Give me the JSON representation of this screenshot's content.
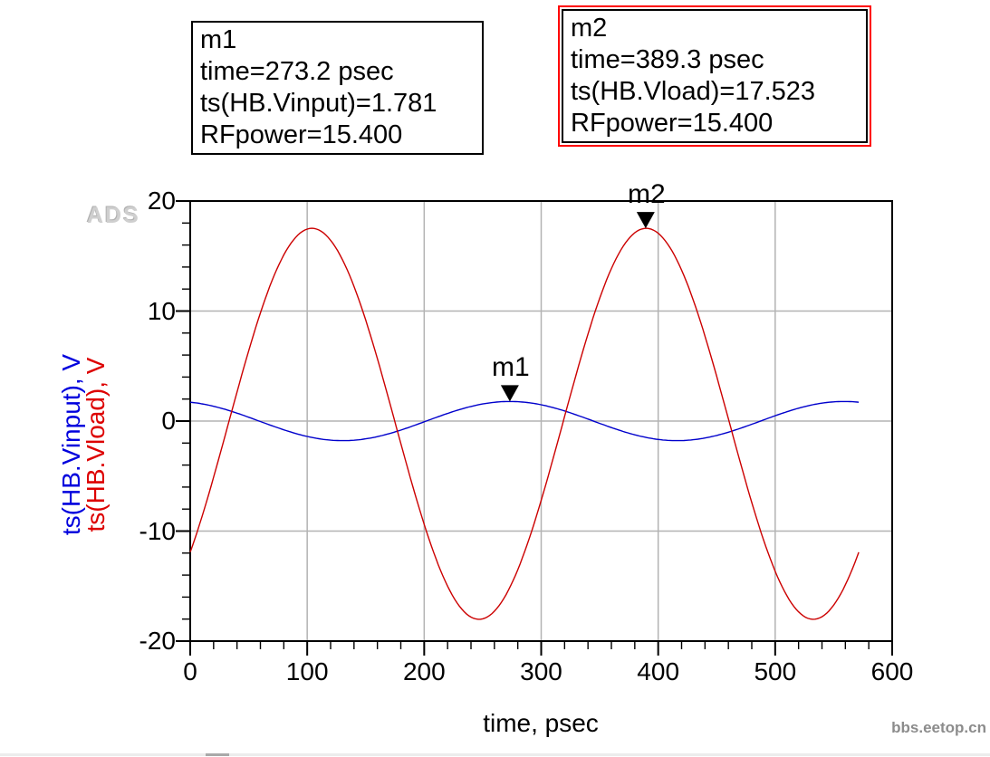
{
  "watermarks": {
    "ads": "ADS",
    "site": "bbs.eetop.cn"
  },
  "markers": {
    "m1": {
      "selected": false,
      "lines": [
        "m1",
        "time=273.2 psec",
        "ts(HB.Vinput)=1.781",
        "RFpower=15.400"
      ]
    },
    "m2": {
      "selected": true,
      "selection_color": "#ff0000",
      "lines": [
        "m2",
        "time=389.3 psec",
        "ts(HB.Vload)=17.523",
        "RFpower=15.400"
      ]
    }
  },
  "chart_data": {
    "type": "line",
    "title": "",
    "xlabel": "time, psec",
    "ylabels": [
      {
        "text": "ts(HB.Vinput), V",
        "color": "#0000dd"
      },
      {
        "text": "ts(HB.Vload), V",
        "color": "#dd0000"
      }
    ],
    "xlim": [
      0,
      600
    ],
    "ylim": [
      -20,
      20
    ],
    "x_major_ticks": [
      0,
      100,
      200,
      300,
      400,
      500,
      600
    ],
    "y_major_ticks": [
      -20,
      -10,
      0,
      10,
      20
    ],
    "x_minor_step": 20,
    "y_minor_step": 2,
    "grid": true,
    "grid_color": "#b3b3b3",
    "frame_color": "#000000",
    "series": [
      {
        "name": "ts(HB.Vinput)",
        "color": "#0000cc",
        "waveform": "sine",
        "amplitude": 1.781,
        "period_psec": 285.714,
        "peak_time_psec": 273.2,
        "dc_offset": 0,
        "t_start": 0,
        "t_end": 571.4,
        "samples_t": [
          0,
          40,
          80,
          120,
          160,
          200,
          240,
          280,
          320,
          360,
          400,
          440,
          480,
          520,
          560
        ],
        "samples_v": [
          1.71,
          0.72,
          -0.8,
          -1.74,
          -1.42,
          -0.07,
          1.33,
          1.76,
          0.92,
          -0.59,
          -1.67,
          -1.54,
          -0.3,
          1.18,
          1.78
        ]
      },
      {
        "name": "ts(HB.Vload)",
        "color": "#cc0000",
        "waveform": "sine",
        "amplitude": 17.77,
        "period_psec": 285.714,
        "peak_time_psec": 104,
        "dc_offset": -0.25,
        "t_start": 0,
        "t_end": 571.4,
        "samples_t": [
          0,
          40,
          80,
          120,
          160,
          200,
          240,
          280,
          320,
          360,
          400,
          440,
          480,
          520,
          560
        ],
        "samples_v": [
          -11.9,
          2.6,
          15.1,
          16.4,
          5.7,
          -9.4,
          -17.8,
          -13.5,
          0.4,
          13.9,
          17.1,
          7.7,
          -7.4,
          -17.3,
          -14.8
        ]
      }
    ],
    "point_markers": [
      {
        "id": "m1",
        "time_psec": 273.2,
        "value": 1.781,
        "series": "ts(HB.Vinput)"
      },
      {
        "id": "m2",
        "time_psec": 389.3,
        "value": 17.523,
        "series": "ts(HB.Vload)"
      }
    ]
  }
}
